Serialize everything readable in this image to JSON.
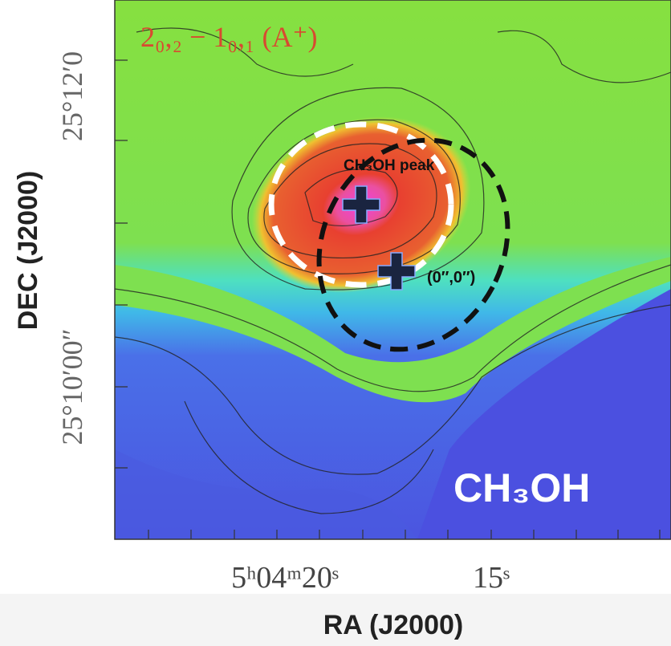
{
  "figure": {
    "title": "2₀,₂ − 1₀,₁ (A⁺)",
    "y_axis_label": "DEC (J2000)",
    "x_axis_label": "RA (J2000)",
    "y_tick_labels": [
      "25°12′0",
      "25°10′00″"
    ],
    "x_tick_labels": [
      "5ʰ04ᵐ20ˢ",
      "15ˢ"
    ],
    "annotations": {
      "peak": "CH₃OH peak",
      "origin": "(0″,0″)",
      "molecule": "CH₃OH"
    }
  }
}
